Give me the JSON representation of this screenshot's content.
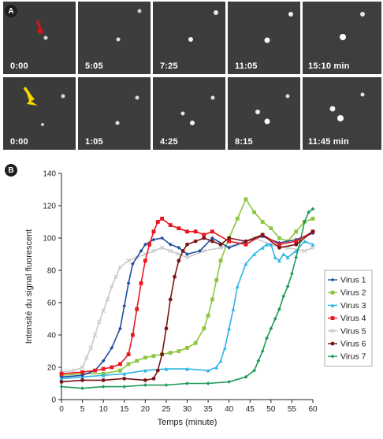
{
  "panel_a": {
    "letter": "A",
    "rows": [
      {
        "frames": [
          "0:00",
          "5:05",
          "7:25",
          "11:05",
          "15:10 min"
        ]
      },
      {
        "frames": [
          "0:00",
          "1:05",
          "4:25",
          "8:15",
          "11:45 min"
        ]
      }
    ],
    "arrow_colors": [
      "#d0161b",
      "#f5d800"
    ]
  },
  "panel_b": {
    "letter": "B"
  },
  "chart_data": {
    "type": "line",
    "title": "",
    "xlabel": "Temps (minute)",
    "ylabel": "Intensité du signal fluorescent",
    "xlim": [
      0,
      60
    ],
    "ylim": [
      0,
      140
    ],
    "xticks": [
      0,
      5,
      10,
      15,
      20,
      25,
      30,
      35,
      40,
      45,
      50,
      55,
      60
    ],
    "yticks": [
      0,
      20,
      40,
      60,
      80,
      100,
      120,
      140
    ],
    "grid": false,
    "legend": "right",
    "series": [
      {
        "name": "Virus 1",
        "color": "#1f4e9e",
        "marker": "diamond",
        "x": [
          0,
          5,
          8,
          10,
          12,
          14,
          15,
          16,
          17,
          19,
          20,
          22,
          24,
          26,
          28,
          30,
          33,
          36,
          40,
          44,
          48,
          52,
          56,
          60
        ],
        "y": [
          14,
          15,
          18,
          24,
          32,
          44,
          58,
          72,
          84,
          92,
          96,
          99,
          100,
          96,
          94,
          90,
          92,
          100,
          94,
          98,
          101,
          97,
          99,
          103
        ]
      },
      {
        "name": "Virus 2",
        "color": "#8cc63f",
        "marker": "square",
        "x": [
          0,
          5,
          10,
          14,
          16,
          18,
          20,
          22,
          24,
          26,
          28,
          30,
          32,
          34,
          35,
          36,
          37,
          38,
          40,
          42,
          44,
          46,
          48,
          50,
          52,
          54,
          56,
          58,
          60
        ],
        "y": [
          15,
          16,
          16,
          18,
          22,
          24,
          26,
          27,
          28,
          29,
          30,
          32,
          35,
          44,
          52,
          62,
          74,
          86,
          100,
          112,
          124,
          116,
          110,
          106,
          100,
          98,
          104,
          110,
          112
        ]
      },
      {
        "name": "Virus 3",
        "color": "#2eb4e8",
        "marker": "triangle",
        "x": [
          0,
          5,
          10,
          15,
          20,
          25,
          30,
          35,
          37,
          38,
          39,
          40,
          41,
          42,
          44,
          46,
          48,
          49,
          50,
          51,
          52,
          53,
          54,
          56,
          58,
          60
        ],
        "y": [
          13,
          14,
          15,
          16,
          18,
          19,
          19,
          18,
          20,
          24,
          32,
          44,
          56,
          70,
          84,
          90,
          94,
          96,
          96,
          88,
          86,
          90,
          88,
          92,
          98,
          96
        ]
      },
      {
        "name": "Virus 4",
        "color": "#e8161d",
        "marker": "square",
        "x": [
          0,
          5,
          8,
          10,
          12,
          14,
          16,
          17,
          18,
          19,
          20,
          21,
          22,
          23,
          24,
          26,
          28,
          30,
          32,
          34,
          36,
          40,
          44,
          48,
          52,
          56,
          60
        ],
        "y": [
          16,
          17,
          18,
          19,
          20,
          22,
          28,
          40,
          56,
          72,
          86,
          96,
          104,
          110,
          112,
          108,
          106,
          104,
          104,
          102,
          104,
          98,
          96,
          102,
          96,
          98,
          104
        ]
      },
      {
        "name": "Virus 5",
        "color": "#c9c9c9",
        "marker": "cross",
        "x": [
          0,
          3,
          5,
          6,
          7,
          8,
          9,
          10,
          11,
          12,
          13,
          14,
          16,
          18,
          20,
          22,
          24,
          26,
          28,
          30,
          34,
          38,
          42,
          46,
          50,
          54,
          58,
          60
        ],
        "y": [
          17,
          18,
          20,
          26,
          32,
          40,
          48,
          55,
          62,
          70,
          76,
          82,
          86,
          88,
          90,
          92,
          94,
          92,
          90,
          88,
          92,
          94,
          96,
          100,
          96,
          94,
          92,
          94
        ]
      },
      {
        "name": "Virus 6",
        "color": "#7a1416",
        "marker": "circle",
        "x": [
          0,
          5,
          10,
          15,
          20,
          22,
          23,
          24,
          25,
          26,
          27,
          28,
          29,
          30,
          32,
          34,
          36,
          38,
          40,
          44,
          48,
          52,
          56,
          60
        ],
        "y": [
          11,
          12,
          12,
          13,
          12,
          13,
          18,
          28,
          44,
          62,
          76,
          86,
          92,
          96,
          98,
          100,
          98,
          96,
          100,
          98,
          102,
          94,
          96,
          104
        ]
      },
      {
        "name": "Virus 7",
        "color": "#1f9a5a",
        "marker": "diamond",
        "x": [
          0,
          5,
          10,
          15,
          20,
          25,
          30,
          35,
          40,
          44,
          46,
          47,
          48,
          49,
          50,
          51,
          52,
          53,
          54,
          55,
          56,
          57,
          58,
          59,
          60
        ],
        "y": [
          8,
          7,
          8,
          8,
          9,
          9,
          10,
          10,
          11,
          14,
          18,
          24,
          30,
          38,
          44,
          50,
          56,
          64,
          70,
          78,
          88,
          98,
          110,
          116,
          118
        ]
      }
    ]
  }
}
